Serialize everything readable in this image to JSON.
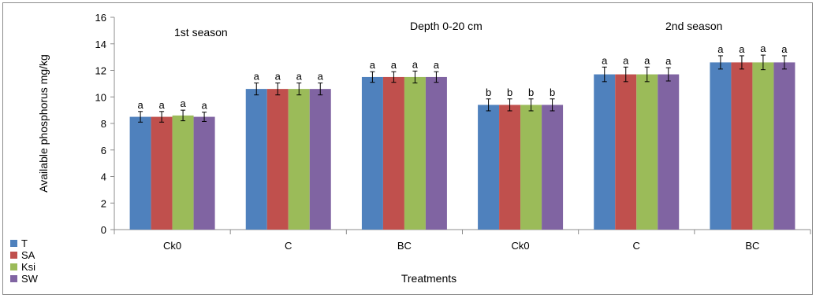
{
  "chart_data": {
    "type": "bar",
    "xlabel": "Treatments",
    "ylabel": "Available phosphorus mg/kg",
    "ylim": [
      0,
      16
    ],
    "yticks": [
      0,
      2,
      4,
      6,
      8,
      10,
      12,
      14,
      16
    ],
    "grid": false,
    "legend_position": "bottom-left",
    "categories": [
      "Ck0",
      "C",
      "BC",
      "Ck0",
      "C",
      "BC"
    ],
    "annotations": [
      "1st season",
      "Depth 0-20 cm",
      "2nd season"
    ],
    "series": [
      {
        "name": "T",
        "color": "#4f81bd",
        "values": [
          8.5,
          10.6,
          11.5,
          9.4,
          11.7,
          12.6
        ],
        "errors": [
          0.4,
          0.45,
          0.4,
          0.45,
          0.55,
          0.5
        ],
        "labels": [
          "a",
          "a",
          "a",
          "b",
          "a",
          "a"
        ]
      },
      {
        "name": "SA",
        "color": "#c0504d",
        "values": [
          8.5,
          10.6,
          11.5,
          9.4,
          11.7,
          12.6
        ],
        "errors": [
          0.4,
          0.45,
          0.4,
          0.45,
          0.55,
          0.5
        ],
        "labels": [
          "a",
          "a",
          "a",
          "b",
          "a",
          "a"
        ]
      },
      {
        "name": "Ksi",
        "color": "#9bbb59",
        "values": [
          8.6,
          10.6,
          11.5,
          9.4,
          11.7,
          12.6
        ],
        "errors": [
          0.4,
          0.45,
          0.45,
          0.45,
          0.55,
          0.55
        ],
        "labels": [
          "a",
          "a",
          "a",
          "b",
          "a",
          "a"
        ]
      },
      {
        "name": "SW",
        "color": "#8064a2",
        "values": [
          8.5,
          10.6,
          11.5,
          9.4,
          11.7,
          12.6
        ],
        "errors": [
          0.35,
          0.45,
          0.4,
          0.45,
          0.5,
          0.5
        ],
        "labels": [
          "a",
          "a",
          "a",
          "b",
          "a",
          "a"
        ]
      }
    ]
  }
}
